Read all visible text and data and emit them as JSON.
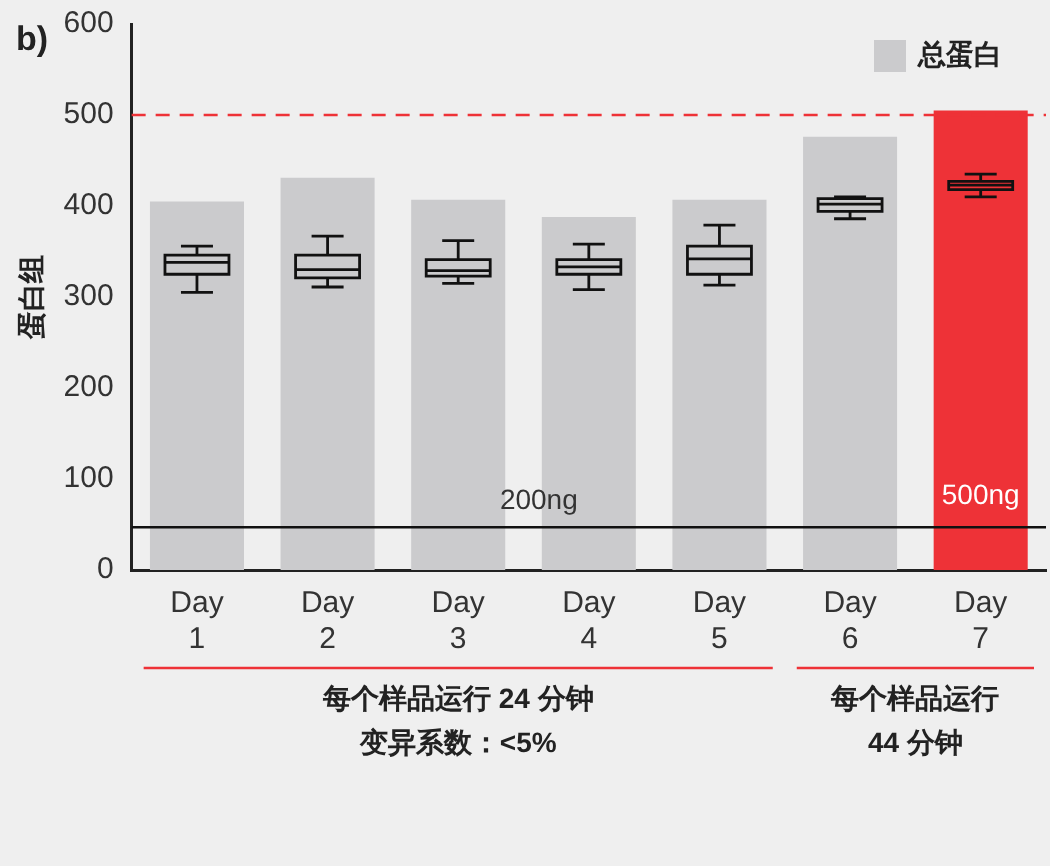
{
  "chart_data": {
    "type": "bar",
    "ylabel": "蛋白组",
    "categories": [
      "Day 1",
      "Day 2",
      "Day 3",
      "Day 4",
      "Day 5",
      "Day 6",
      "Day 7"
    ],
    "series": [
      {
        "name": "总蛋白",
        "type": "bar",
        "colors": [
          "#cbcbcd",
          "#cbcbcd",
          "#cbcbcd",
          "#cbcbcd",
          "#cbcbcd",
          "#cbcbcd",
          "#ee3237"
        ],
        "values": [
          405,
          431,
          407,
          388,
          407,
          476,
          505
        ]
      },
      {
        "type": "box",
        "color": "#111111",
        "boxes": [
          {
            "low": 305,
            "q1": 325,
            "median": 338,
            "q3": 346,
            "high": 356
          },
          {
            "low": 311,
            "q1": 321,
            "median": 330,
            "q3": 346,
            "high": 367
          },
          {
            "low": 315,
            "q1": 323,
            "median": 329,
            "q3": 341,
            "high": 362
          },
          {
            "low": 308,
            "q1": 325,
            "median": 333,
            "q3": 341,
            "high": 358
          },
          {
            "low": 313,
            "q1": 325,
            "median": 342,
            "q3": 356,
            "high": 379
          },
          {
            "low": 386,
            "q1": 394,
            "median": 402,
            "q3": 408,
            "high": 410
          },
          {
            "low": 410,
            "q1": 418,
            "median": 423,
            "q3": 427,
            "high": 435
          }
        ]
      }
    ],
    "ylim": [
      0,
      600
    ],
    "yticks": [
      0,
      100,
      200,
      300,
      400,
      500,
      600
    ],
    "grid": false,
    "legend": "top right",
    "ref_lines": [
      {
        "axis": "y",
        "value": 500,
        "color": "#ee3237",
        "line_style": "dashed"
      },
      {
        "axis": "y",
        "value": 47,
        "label": "200ng",
        "color": "#111111",
        "line_style": "solid"
      }
    ],
    "annotations": [
      "b)",
      "500ng",
      "每个样品运行 24 分钟",
      "变异系数：<5%",
      "每个样品运行",
      "44 分钟"
    ]
  }
}
